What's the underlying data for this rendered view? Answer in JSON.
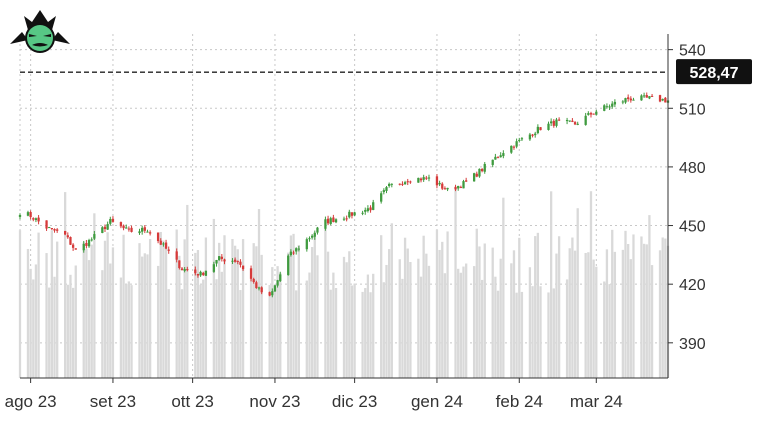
{
  "logo": {
    "icon": "samurai-helmet-logo-icon"
  },
  "colors": {
    "up": "#3f9b3f",
    "down": "#d63a3a",
    "volume": "#d9d9d9",
    "grid": "#c8c8c8",
    "axis": "#333333",
    "price_line": "#222222",
    "price_tag_bg": "#111111",
    "logo_green": "#57c785",
    "logo_dark": "#111111"
  },
  "chart_data": {
    "type": "candlestick",
    "title": "",
    "xlabel": "",
    "ylabel": "",
    "ylim": [
      372,
      548
    ],
    "y_ticks": [
      {
        "value": 540,
        "label": "540"
      },
      {
        "value": 510,
        "label": "510"
      },
      {
        "value": 480,
        "label": "480"
      },
      {
        "value": 450,
        "label": "450"
      },
      {
        "value": 420,
        "label": "420"
      },
      {
        "value": 390,
        "label": "390"
      }
    ],
    "x_ticks": [
      {
        "date": "2023-08-01",
        "label": "ago 23"
      },
      {
        "date": "2023-09-01",
        "label": "set 23"
      },
      {
        "date": "2023-10-01",
        "label": "ott 23"
      },
      {
        "date": "2023-11-01",
        "label": "nov 23"
      },
      {
        "date": "2023-12-01",
        "label": "dic 23"
      },
      {
        "date": "2024-01-01",
        "label": "gen 24"
      },
      {
        "date": "2024-02-01",
        "label": "feb 24"
      },
      {
        "date": "2024-03-01",
        "label": "mar 24"
      }
    ],
    "x_range": [
      "2023-07-28",
      "2024-03-28"
    ],
    "current_price": {
      "value": 528.47,
      "label": "528,47"
    },
    "grid": true,
    "close_anchors": [
      [
        "2023-07-28",
        457
      ],
      [
        "2023-08-01",
        455
      ],
      [
        "2023-08-07",
        449
      ],
      [
        "2023-08-14",
        445
      ],
      [
        "2023-08-18",
        437
      ],
      [
        "2023-08-24",
        443
      ],
      [
        "2023-08-31",
        452
      ],
      [
        "2023-09-07",
        447
      ],
      [
        "2023-09-14",
        448
      ],
      [
        "2023-09-21",
        438
      ],
      [
        "2023-09-27",
        428
      ],
      [
        "2023-10-04",
        425
      ],
      [
        "2023-10-11",
        433
      ],
      [
        "2023-10-18",
        432
      ],
      [
        "2023-10-26",
        417
      ],
      [
        "2023-10-30",
        413
      ],
      [
        "2023-11-06",
        434
      ],
      [
        "2023-11-14",
        444
      ],
      [
        "2023-11-20",
        452
      ],
      [
        "2023-11-28",
        455
      ],
      [
        "2023-12-07",
        459
      ],
      [
        "2023-12-14",
        470
      ],
      [
        "2023-12-22",
        474
      ],
      [
        "2023-12-29",
        474
      ],
      [
        "2024-01-05",
        468
      ],
      [
        "2024-01-12",
        472
      ],
      [
        "2024-01-19",
        480
      ],
      [
        "2024-01-26",
        488
      ],
      [
        "2024-02-02",
        494
      ],
      [
        "2024-02-09",
        500
      ],
      [
        "2024-02-15",
        503
      ],
      [
        "2024-02-22",
        502
      ],
      [
        "2024-02-29",
        508
      ],
      [
        "2024-03-07",
        512
      ],
      [
        "2024-03-13",
        515
      ],
      [
        "2024-03-21",
        515
      ],
      [
        "2024-03-28",
        514
      ]
    ],
    "volume_level": 0.55
  }
}
